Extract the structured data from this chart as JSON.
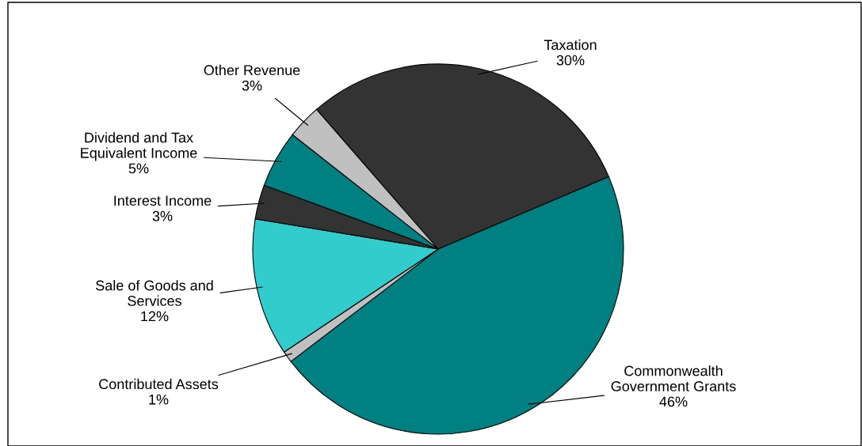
{
  "chart_data": {
    "type": "pie",
    "categories": [
      "Taxation",
      "Commonwealth\nGovernment Grants",
      "Contributed Assets",
      "Sale of Goods and\nServices",
      "Interest Income",
      "Dividend and Tax\nEquivalent Income",
      "Other Revenue"
    ],
    "values": [
      30,
      46,
      1,
      12,
      3,
      5,
      3
    ],
    "value_labels": [
      "30%",
      "46%",
      "1%",
      "12%",
      "3%",
      "5%",
      "3%"
    ],
    "colors": [
      "#333333",
      "#008080",
      "#c0c0c0",
      "#33cccc",
      "#333333",
      "#008080",
      "#c0c0c0"
    ],
    "legend": false
  }
}
